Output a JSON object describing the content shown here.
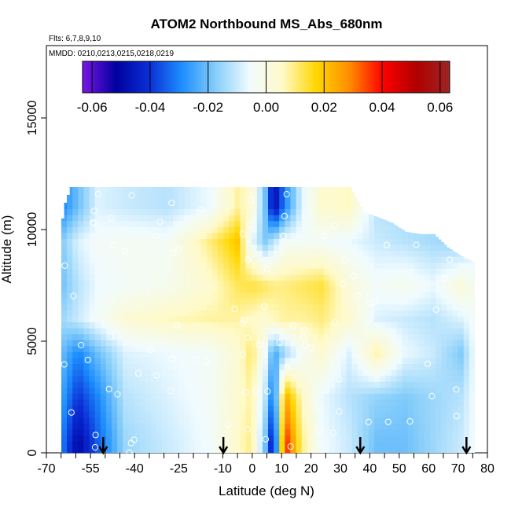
{
  "chart_data": {
    "type": "heatmap",
    "title": "ATOM2 Northbound MS_Abs_680nm",
    "flights_label": "Flts: 6,7,8,9,10",
    "dates_label": "MMDD: 0210,0213,0215,0218,0219",
    "xlabel": "Latitude (deg N)",
    "ylabel": "Altitude (m)",
    "xlim": [
      -70,
      80
    ],
    "ylim": [
      0,
      17500
    ],
    "x_ticks": [
      -70,
      -55,
      -40,
      -25,
      -10,
      0,
      10,
      20,
      30,
      40,
      50,
      60,
      70,
      80
    ],
    "x_tick_labels": [
      "-70",
      "-55",
      "-40",
      "-25",
      "-10",
      "0",
      "10",
      "20",
      "30",
      "40",
      "50",
      "60",
      "70",
      "80"
    ],
    "x_minor_ticks": [
      -65,
      -60,
      -50,
      -45,
      -35,
      -30,
      -20,
      -15,
      -5,
      5,
      15,
      25,
      35,
      45,
      55,
      65,
      75
    ],
    "y_ticks": [
      0,
      5000,
      10000,
      15000
    ],
    "y_tick_labels": [
      "0",
      "5000",
      "10000",
      "15000"
    ],
    "colorbar": {
      "range": [
        -0.0633,
        0.0633
      ],
      "ticks": [
        -0.06,
        -0.04,
        -0.02,
        0.0,
        0.02,
        0.04,
        0.06
      ],
      "tick_labels": [
        "-0.06",
        "-0.04",
        "-0.02",
        "0.00",
        "0.02",
        "0.04",
        "0.06"
      ],
      "colors": [
        "#7b15e8",
        "#00009e",
        "#0a2fd6",
        "#1e90ff",
        "#87cefa",
        "#f0fbff",
        "#fffac8",
        "#ffd700",
        "#ff8c00",
        "#ff0000",
        "#b00000",
        "#9e2424"
      ]
    },
    "profile_markers_lat": [
      -53,
      -10,
      39,
      77
    ],
    "top_altitude_by_lat": [
      [
        -68,
        10500
      ],
      [
        -67,
        11200
      ],
      [
        -65,
        11900
      ],
      [
        -40,
        11900
      ],
      [
        28,
        11900
      ],
      [
        35,
        11900
      ],
      [
        40,
        10800
      ],
      [
        50,
        10300
      ],
      [
        55,
        9900
      ],
      [
        60,
        9800
      ],
      [
        65,
        9800
      ],
      [
        70,
        9200
      ],
      [
        75,
        8800
      ],
      [
        80,
        8500
      ]
    ],
    "field_values_by_lat_alt": [
      {
        "alt": 500,
        "lat": [
          -68,
          -62,
          -55,
          -45,
          -30,
          -15,
          -5,
          0,
          5,
          8,
          12,
          18,
          25,
          35,
          45,
          55,
          65,
          75,
          80
        ],
        "val": [
          -0.03,
          -0.05,
          -0.035,
          -0.015,
          -0.01,
          -0.005,
          0.005,
          0.01,
          -0.02,
          -0.05,
          0.04,
          0.01,
          -0.005,
          -0.01,
          -0.02,
          -0.02,
          -0.015,
          -0.01,
          -0.005
        ]
      },
      {
        "alt": 2500,
        "lat": [
          -68,
          -62,
          -55,
          -45,
          -30,
          -15,
          -5,
          0,
          5,
          8,
          12,
          18,
          25,
          35,
          45,
          55,
          65,
          75,
          80
        ],
        "val": [
          -0.025,
          -0.04,
          -0.03,
          -0.012,
          -0.008,
          -0.004,
          0.004,
          0.008,
          -0.012,
          -0.035,
          0.025,
          0.006,
          -0.006,
          -0.012,
          -0.016,
          -0.018,
          -0.015,
          -0.012,
          -0.005
        ]
      },
      {
        "alt": 4500,
        "lat": [
          -68,
          -62,
          -55,
          -45,
          -30,
          -15,
          -5,
          0,
          5,
          8,
          12,
          18,
          25,
          35,
          45,
          55,
          65,
          75,
          80
        ],
        "val": [
          -0.02,
          -0.03,
          -0.02,
          -0.008,
          -0.006,
          -0.004,
          0.003,
          0.012,
          -0.005,
          -0.025,
          -0.015,
          -0.004,
          0.004,
          -0.008,
          0.008,
          -0.006,
          -0.01,
          -0.018,
          -0.005
        ]
      },
      {
        "alt": 6000,
        "lat": [
          -68,
          -62,
          -55,
          -45,
          -30,
          -15,
          -5,
          0,
          5,
          8,
          12,
          18,
          25,
          35,
          45,
          55,
          65,
          75,
          80
        ],
        "val": [
          -0.015,
          -0.01,
          -0.004,
          0.003,
          0.006,
          0.008,
          0.008,
          0.005,
          0.004,
          0.006,
          0.008,
          0.008,
          0.01,
          0.004,
          -0.008,
          -0.01,
          -0.012,
          -0.008,
          -0.004
        ]
      },
      {
        "alt": 7500,
        "lat": [
          -68,
          -62,
          -55,
          -45,
          -30,
          -15,
          -5,
          0,
          5,
          8,
          12,
          18,
          25,
          35,
          45,
          55,
          65,
          75,
          80
        ],
        "val": [
          -0.02,
          -0.012,
          -0.006,
          -0.004,
          -0.002,
          0.004,
          0.012,
          0.014,
          0.012,
          0.01,
          0.01,
          0.012,
          0.014,
          0.002,
          -0.004,
          -0.002,
          -0.006,
          0.002,
          -0.002
        ]
      },
      {
        "alt": 9500,
        "lat": [
          -68,
          -62,
          -55,
          -45,
          -30,
          -15,
          -5,
          0,
          5,
          8,
          12,
          18,
          25,
          35,
          45,
          55,
          65,
          75,
          80
        ],
        "val": [
          -0.018,
          -0.008,
          -0.004,
          -0.003,
          -0.004,
          0.01,
          0.02,
          -0.006,
          -0.018,
          -0.012,
          -0.004,
          -0.004,
          -0.004,
          -0.006,
          -0.01,
          -0.012,
          -0.014,
          -0.016,
          -0.01
        ]
      },
      {
        "alt": 11000,
        "lat": [
          -68,
          -62,
          -55,
          -45,
          -30,
          -15,
          -5,
          0,
          5,
          8,
          12,
          18,
          25,
          35,
          45,
          55,
          65,
          75,
          80
        ],
        "val": [
          -0.03,
          -0.02,
          -0.008,
          -0.01,
          -0.012,
          -0.006,
          0.008,
          0.004,
          -0.02,
          -0.05,
          -0.03,
          -0.008,
          0.004,
          0.006,
          -0.012,
          -0.014,
          -0.014,
          -0.014,
          -0.012
        ]
      }
    ]
  }
}
